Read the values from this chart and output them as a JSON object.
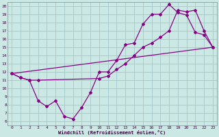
{
  "xlabel": "Windchill (Refroidissement éolien,°C)",
  "bg_color": "#cce8e4",
  "grid_color": "#aacccc",
  "line_color": "#880088",
  "xlim": [
    -0.5,
    23.5
  ],
  "ylim": [
    5.5,
    20.5
  ],
  "xticks": [
    0,
    1,
    2,
    3,
    4,
    5,
    6,
    7,
    8,
    9,
    10,
    11,
    12,
    13,
    14,
    15,
    16,
    17,
    18,
    19,
    20,
    21,
    22,
    23
  ],
  "yticks": [
    6,
    7,
    8,
    9,
    10,
    11,
    12,
    13,
    14,
    15,
    16,
    17,
    18,
    19,
    20
  ],
  "line1_x": [
    0,
    1,
    2,
    3,
    4,
    5,
    6,
    7,
    8,
    9,
    10,
    11,
    12,
    13,
    14,
    15,
    16,
    17,
    18,
    19,
    20,
    21,
    22,
    23
  ],
  "line1_y": [
    11.8,
    11.3,
    11.0,
    8.5,
    7.8,
    8.5,
    6.6,
    6.3,
    7.7,
    9.5,
    12.0,
    12.0,
    13.4,
    15.3,
    15.5,
    17.8,
    19.0,
    19.0,
    20.2,
    19.2,
    18.9,
    16.8,
    16.5,
    15.0
  ],
  "line2_x": [
    0,
    1,
    2,
    3,
    10,
    11,
    12,
    13,
    14,
    15,
    16,
    17,
    18,
    19,
    20,
    21,
    22,
    23
  ],
  "line2_y": [
    11.8,
    11.3,
    11.0,
    11.0,
    11.2,
    11.5,
    12.3,
    13.0,
    14.0,
    15.0,
    15.5,
    16.2,
    17.0,
    19.5,
    19.3,
    19.5,
    17.0,
    15.0
  ],
  "line3_x": [
    0,
    23
  ],
  "line3_y": [
    11.8,
    15.0
  ]
}
